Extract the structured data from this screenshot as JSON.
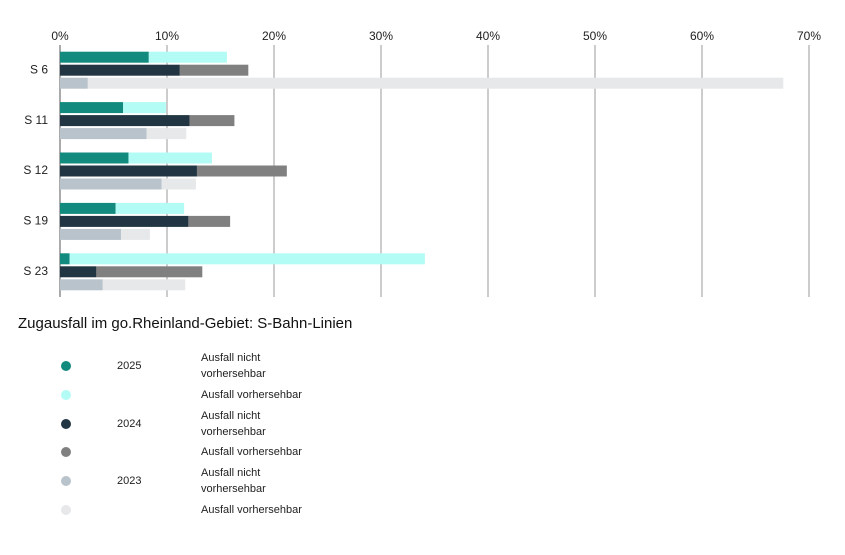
{
  "chart_data": {
    "type": "stacked-bar-horizontal",
    "title": "Zugausfall im go.Rheinland-Gebiet: S-Bahn-Linien",
    "categories": [
      "S 6",
      "S 11",
      "S 12",
      "S 19",
      "S 23"
    ],
    "groups": [
      {
        "name": "2025",
        "series": [
          {
            "name": "Ausfall nicht vorhersehbar",
            "color": "#138a7e",
            "values": [
              8.3,
              5.9,
              6.4,
              5.2,
              0.9
            ]
          },
          {
            "name": "Ausfall vorhersehbar",
            "color": "#b3fbf5",
            "values": [
              7.3,
              4.0,
              7.8,
              6.4,
              33.2
            ]
          }
        ]
      },
      {
        "name": "2024",
        "series": [
          {
            "name": "Ausfall nicht vorhersehbar",
            "color": "#213642",
            "values": [
              11.2,
              12.1,
              12.8,
              12.0,
              3.4
            ]
          },
          {
            "name": "Ausfall vorhersehbar",
            "color": "#808080",
            "values": [
              6.4,
              4.2,
              8.4,
              3.9,
              9.9
            ]
          }
        ]
      },
      {
        "name": "2023",
        "series": [
          {
            "name": "Ausfall nicht vorhersehbar",
            "color": "#b8c3cb",
            "values": [
              2.6,
              8.1,
              9.5,
              5.7,
              4.0
            ]
          },
          {
            "name": "Ausfall vorhersehbar",
            "color": "#e6e8ea",
            "values": [
              65.0,
              3.7,
              3.2,
              2.7,
              7.7
            ]
          }
        ]
      }
    ],
    "xlim": [
      0,
      70
    ],
    "xticks": [
      {
        "value": 0,
        "label": "0%"
      },
      {
        "value": 10,
        "label": "10%"
      },
      {
        "value": 20,
        "label": "20%"
      },
      {
        "value": 30,
        "label": "30%"
      },
      {
        "value": 40,
        "label": "40%"
      },
      {
        "value": 50,
        "label": "50%"
      },
      {
        "value": 60,
        "label": "60%"
      },
      {
        "value": 70,
        "label": "70%"
      }
    ],
    "grid": true
  }
}
